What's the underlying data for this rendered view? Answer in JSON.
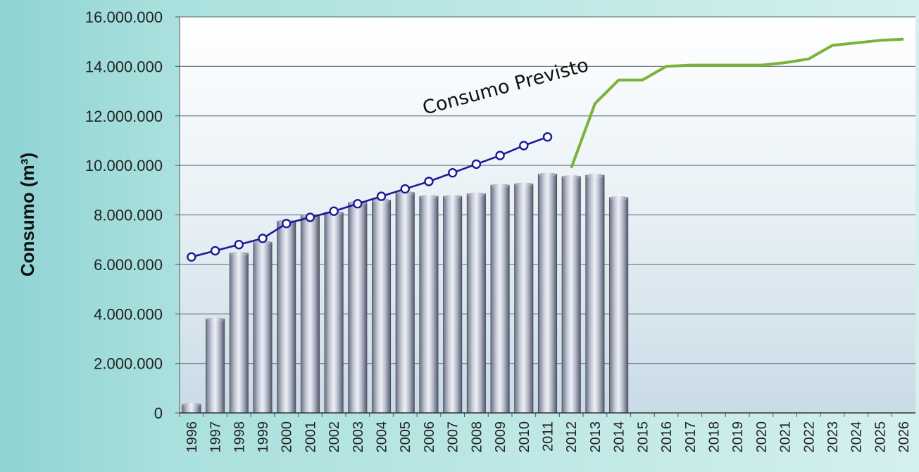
{
  "chart_data": {
    "type": "bar",
    "ylabel": "Consumo (m³)",
    "ylim": [
      0,
      16000000
    ],
    "yticks": [
      "0",
      "2.000.000",
      "4.000.000",
      "6.000.000",
      "8.000.000",
      "10.000.000",
      "12.000.000",
      "14.000.000",
      "16.000.000"
    ],
    "grid": true,
    "categories": [
      "1996",
      "1997",
      "1998",
      "1999",
      "2000",
      "2001",
      "2002",
      "2003",
      "2004",
      "2005",
      "2006",
      "2007",
      "2008",
      "2009",
      "2010",
      "2011",
      "2012",
      "2013",
      "2014",
      "2015",
      "2016",
      "2017",
      "2018",
      "2019",
      "2020",
      "2021",
      "2022",
      "2023",
      "2024",
      "2025",
      "2026"
    ],
    "series": [
      {
        "type": "bar",
        "values": [
          350000,
          3800000,
          6450000,
          6900000,
          7750000,
          8000000,
          8100000,
          8500000,
          8600000,
          8900000,
          8750000,
          8750000,
          8850000,
          9200000,
          9250000,
          9650000,
          9550000,
          9600000,
          8700000,
          null,
          null,
          null,
          null,
          null,
          null,
          null,
          null,
          null,
          null,
          null,
          null
        ],
        "color": "#b8bdd0"
      },
      {
        "type": "line",
        "values": [
          6300000,
          6550000,
          6800000,
          7050000,
          7650000,
          7900000,
          8150000,
          8450000,
          8750000,
          9050000,
          9350000,
          9700000,
          10050000,
          10400000,
          10800000,
          11150000,
          null,
          null,
          null,
          null,
          null,
          null,
          null,
          null,
          null,
          null,
          null,
          null,
          null,
          null,
          null
        ],
        "color": "#1a1a9a"
      },
      {
        "name": "Consumo Previsto",
        "type": "line",
        "values": [
          null,
          null,
          null,
          null,
          null,
          null,
          null,
          null,
          null,
          null,
          null,
          null,
          null,
          null,
          null,
          null,
          9900000,
          12500000,
          13450000,
          13450000,
          14000000,
          14050000,
          14050000,
          14050000,
          14050000,
          14150000,
          14300000,
          14850000,
          14950000,
          15050000,
          15100000
        ],
        "color": "#7ab338"
      }
    ],
    "annotations": [
      {
        "text": "Consumo Previsto"
      }
    ]
  }
}
